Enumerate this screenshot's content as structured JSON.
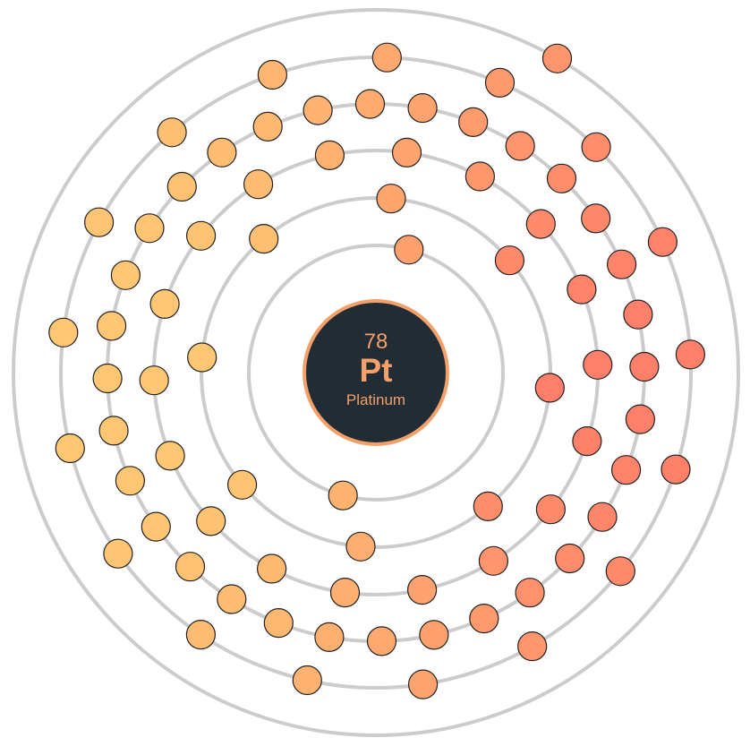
{
  "element": {
    "atomic_number": "78",
    "symbol": "Pt",
    "name": "Platinum"
  },
  "shells": [
    {
      "shell": 1,
      "electrons": 2
    },
    {
      "shell": 2,
      "electrons": 8
    },
    {
      "shell": 3,
      "electrons": 18
    },
    {
      "shell": 4,
      "electrons": 32
    },
    {
      "shell": 5,
      "electrons": 17
    },
    {
      "shell": 6,
      "electrons": 1
    }
  ],
  "colors": {
    "background": "#ffffff",
    "shell_stroke": "#cccccc",
    "nucleus_fill": "#212c35",
    "nucleus_ring": "#f4a06a",
    "text": "#f4a06a",
    "electron_warm": "#ffc774",
    "electron_hot": "#ff7f6a",
    "electron_stroke": "#222222"
  }
}
